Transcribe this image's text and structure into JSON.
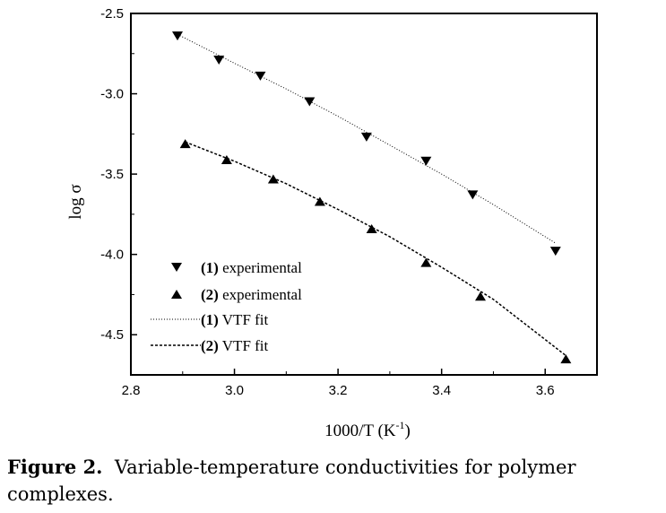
{
  "chart_data": {
    "type": "scatter",
    "xlabel": "1000/T (K⁻¹)",
    "ylabel": "log σ",
    "xlim": [
      2.8,
      3.7
    ],
    "ylim": [
      -4.75,
      -2.5
    ],
    "xticks": [
      "2.8",
      "3.0",
      "3.2",
      "3.4",
      "3.6"
    ],
    "yticks": [
      "-2.5",
      "-3.0",
      "-3.5",
      "-4.0",
      "-4.5"
    ],
    "legend_position": "bottom-left",
    "series": [
      {
        "name": "experimental",
        "label_num": "(1)",
        "marker": "triangle-down",
        "x": [
          2.89,
          2.97,
          3.05,
          3.145,
          3.255,
          3.37,
          3.46,
          3.62
        ],
        "y": [
          -2.64,
          -2.79,
          -2.89,
          -3.05,
          -3.27,
          -3.42,
          -3.63,
          -3.98
        ]
      },
      {
        "name": "experimental",
        "label_num": "(2)",
        "marker": "triangle-up",
        "x": [
          2.905,
          2.985,
          3.075,
          3.165,
          3.265,
          3.37,
          3.475,
          3.64
        ],
        "y": [
          -3.31,
          -3.41,
          -3.53,
          -3.67,
          -3.84,
          -4.05,
          -4.26,
          -4.65
        ]
      },
      {
        "name": "VTF fit",
        "label_num": "(1)",
        "line": "dotted",
        "x": [
          2.89,
          3.0,
          3.1,
          3.2,
          3.3,
          3.4,
          3.5,
          3.62
        ],
        "y": [
          -2.63,
          -2.81,
          -2.97,
          -3.14,
          -3.32,
          -3.5,
          -3.69,
          -3.93
        ]
      },
      {
        "name": "VTF fit",
        "label_num": "(2)",
        "line": "dashed",
        "x": [
          2.905,
          3.0,
          3.1,
          3.2,
          3.3,
          3.4,
          3.5,
          3.64
        ],
        "y": [
          -3.3,
          -3.42,
          -3.56,
          -3.72,
          -3.89,
          -4.08,
          -4.28,
          -4.63
        ]
      }
    ]
  },
  "caption": {
    "label": "Figure 2.",
    "text": "Variable-temperature conductivities for polymer complexes."
  }
}
